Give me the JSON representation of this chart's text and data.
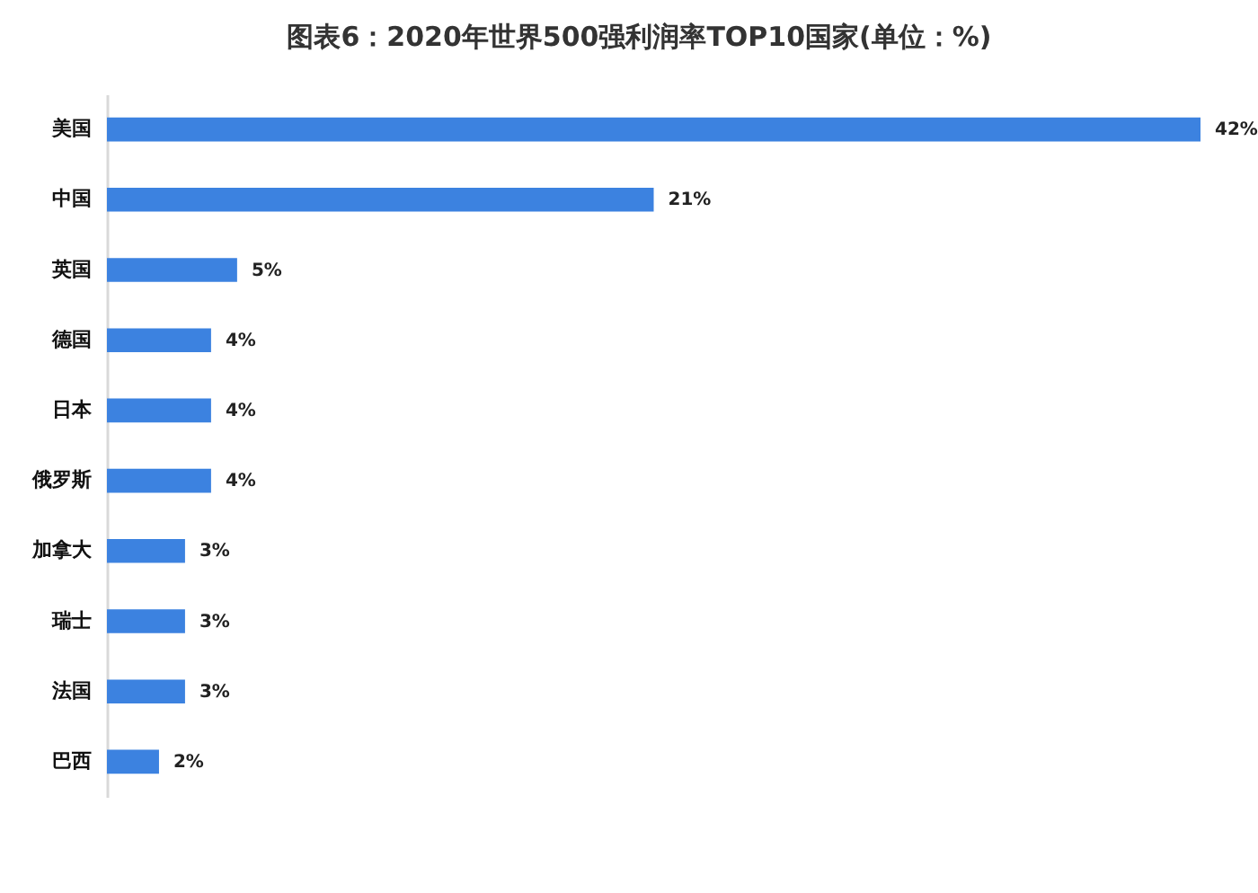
{
  "chart_data": {
    "type": "bar",
    "orientation": "horizontal",
    "title": "图表6：2020年世界500强利润率TOP10国家(单位：%)",
    "categories": [
      "美国",
      "中国",
      "英国",
      "德国",
      "日本",
      "俄罗斯",
      "加拿大",
      "瑞士",
      "法国",
      "巴西"
    ],
    "values": [
      42,
      21,
      5,
      4,
      4,
      4,
      3,
      3,
      3,
      2
    ],
    "value_labels": [
      "42%",
      "21%",
      "5%",
      "4%",
      "4%",
      "4%",
      "3%",
      "3%",
      "3%",
      "2%"
    ],
    "color": "#3c82e0",
    "xlim": [
      0,
      42
    ],
    "tick_labels": "y"
  }
}
